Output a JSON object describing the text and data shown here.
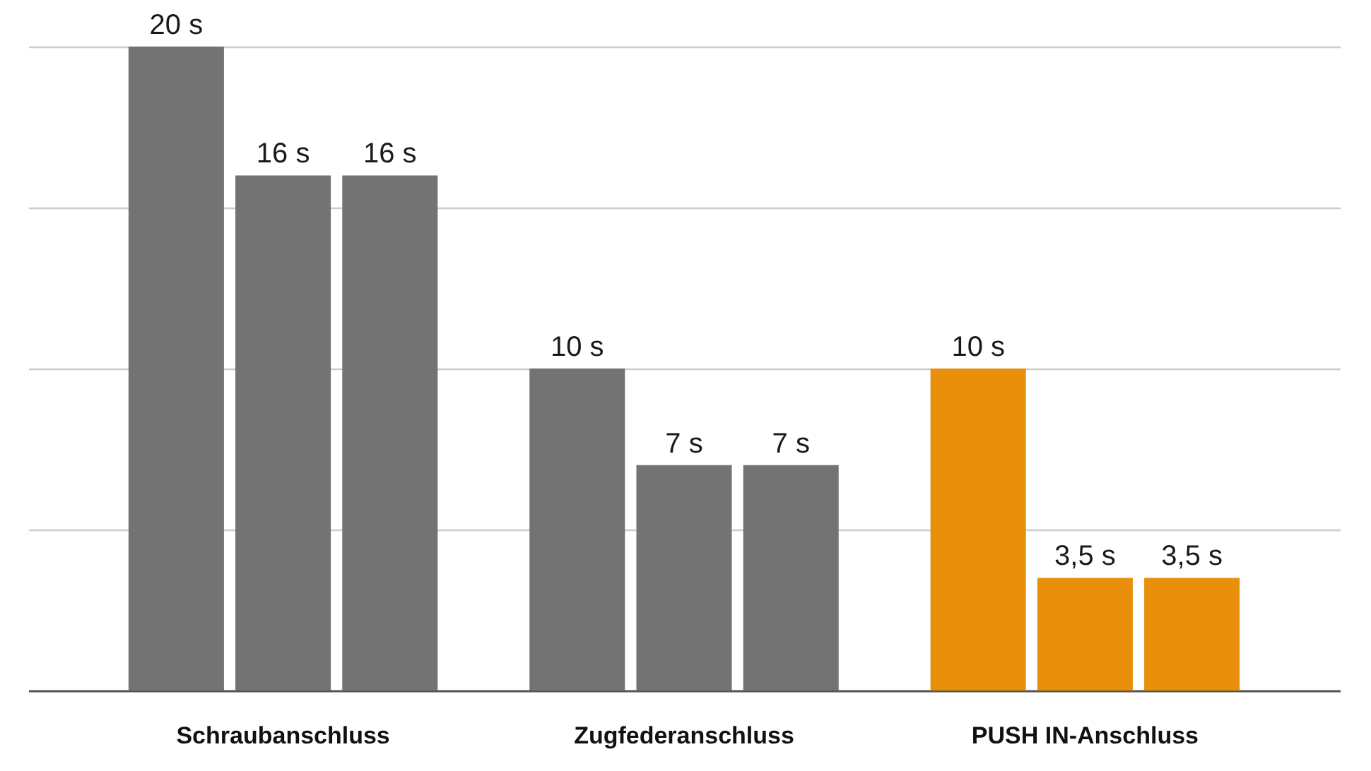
{
  "chart_data": {
    "type": "bar",
    "categories": [
      "Schraubanschluss",
      "Zugfederanschluss",
      "PUSH IN-Anschluss"
    ],
    "series": [
      {
        "colors": [
          "#737373",
          "#737373",
          "#e8900c"
        ],
        "values": [
          20,
          10,
          10
        ],
        "value_labels": [
          "20 s",
          "10 s",
          "10 s"
        ]
      },
      {
        "colors": [
          "#737373",
          "#737373",
          "#e8900c"
        ],
        "values": [
          16,
          7,
          3.5
        ],
        "value_labels": [
          "16 s",
          "7 s",
          "3,5 s"
        ]
      },
      {
        "colors": [
          "#737373",
          "#737373",
          "#e8900c"
        ],
        "values": [
          16,
          7,
          3.5
        ],
        "value_labels": [
          "16 s",
          "7 s",
          "3,5 s"
        ]
      }
    ],
    "ylim": [
      0,
      20
    ],
    "yticks": [
      {
        "value": 0,
        "label": null
      },
      {
        "value": 5,
        "label": null
      },
      {
        "value": 10,
        "label": null
      },
      {
        "value": 15,
        "label": null
      },
      {
        "value": 20,
        "label": null
      }
    ],
    "grid": "y",
    "tick_labels": "x"
  }
}
